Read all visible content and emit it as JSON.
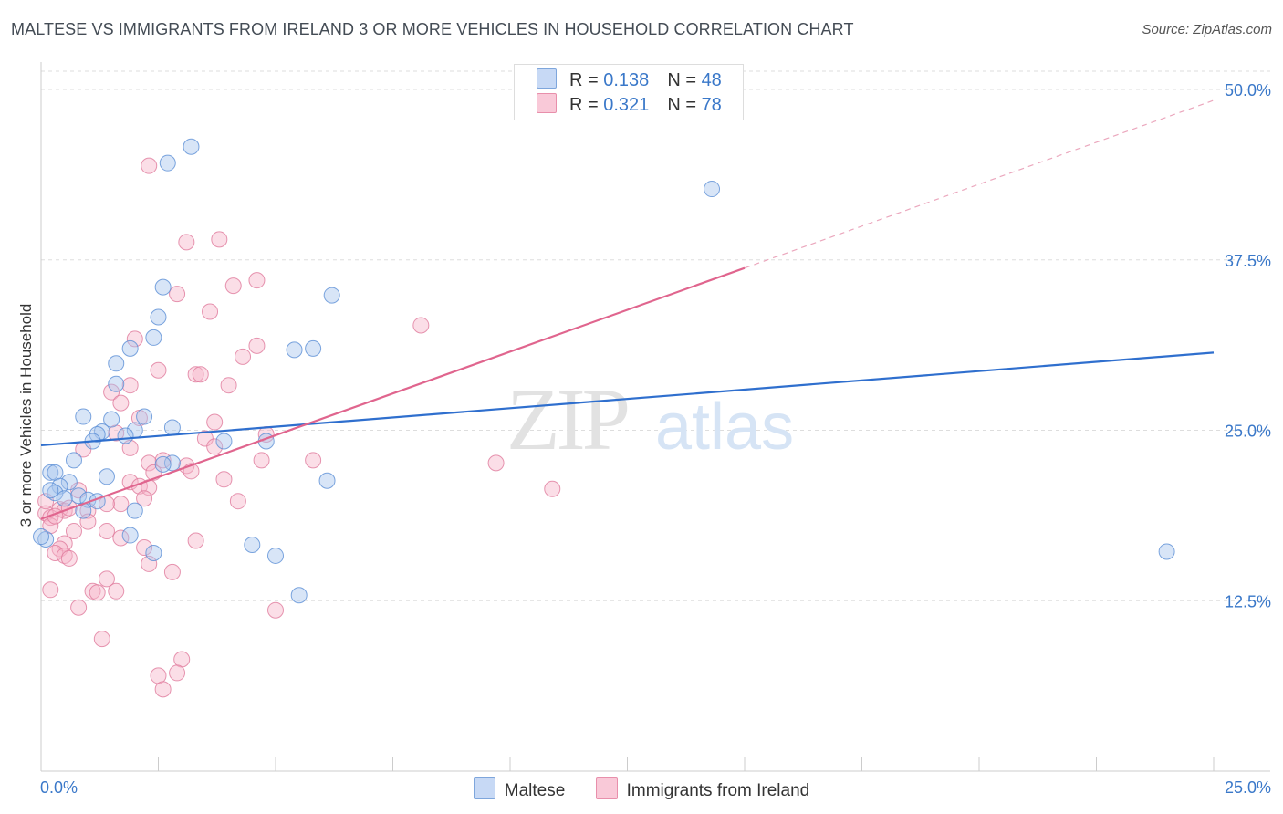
{
  "header": {
    "title": "MALTESE VS IMMIGRANTS FROM IRELAND 3 OR MORE VEHICLES IN HOUSEHOLD CORRELATION CHART",
    "source": "Source: ZipAtlas.com"
  },
  "legend": {
    "rows": [
      {
        "r_label": "R = ",
        "r_value": "0.138",
        "n_label": "N = ",
        "n_value": "48"
      },
      {
        "r_label": "R = ",
        "r_value": "0.321",
        "n_label": "N = ",
        "n_value": "78"
      }
    ]
  },
  "bottom_legend": {
    "series1": "Maltese",
    "series2": "Immigrants from Ireland"
  },
  "colors": {
    "blue_fill": "#a9c6ee",
    "blue_stroke": "#5b8fd6",
    "blue_line": "#2f6fce",
    "pink_fill": "#f6b5c9",
    "pink_stroke": "#e07a9c",
    "pink_line": "#e0658e",
    "axis_label": "#3a78c9"
  },
  "chart_data": {
    "type": "scatter",
    "title": "MALTESE VS IMMIGRANTS FROM IRELAND 3 OR MORE VEHICLES IN HOUSEHOLD CORRELATION CHART",
    "xlabel": "",
    "ylabel": "3 or more Vehicles in Household",
    "xlim": [
      0,
      25
    ],
    "ylim": [
      0,
      50
    ],
    "x_tick_labels": [
      "0.0%",
      "25.0%"
    ],
    "y_ticks": [
      12.5,
      25.0,
      37.5,
      50.0
    ],
    "y_tick_labels": [
      "12.5%",
      "25.0%",
      "37.5%",
      "50.0%"
    ],
    "watermark": {
      "zip": "ZIP",
      "atlas": "atlas"
    },
    "series": [
      {
        "name": "Maltese",
        "r": 0.138,
        "n": 48,
        "trend": {
          "x0": 0,
          "y0": 23.9,
          "x1": 25,
          "y1": 30.7,
          "dash_from": null
        },
        "points": [
          [
            3.2,
            45.8
          ],
          [
            2.7,
            44.6
          ],
          [
            14.3,
            42.7
          ],
          [
            2.6,
            35.5
          ],
          [
            6.2,
            34.9
          ],
          [
            2.5,
            33.3
          ],
          [
            2.4,
            31.8
          ],
          [
            1.9,
            31.0
          ],
          [
            5.8,
            31.0
          ],
          [
            5.4,
            30.9
          ],
          [
            1.6,
            29.9
          ],
          [
            1.6,
            28.4
          ],
          [
            0.9,
            26.0
          ],
          [
            2.2,
            26.0
          ],
          [
            1.5,
            25.8
          ],
          [
            2.8,
            25.2
          ],
          [
            2.0,
            25.0
          ],
          [
            1.3,
            24.9
          ],
          [
            1.2,
            24.7
          ],
          [
            1.8,
            24.6
          ],
          [
            1.1,
            24.2
          ],
          [
            3.9,
            24.2
          ],
          [
            4.8,
            24.2
          ],
          [
            2.8,
            22.6
          ],
          [
            0.7,
            22.8
          ],
          [
            2.6,
            22.5
          ],
          [
            0.2,
            21.9
          ],
          [
            0.3,
            21.9
          ],
          [
            1.4,
            21.6
          ],
          [
            6.1,
            21.3
          ],
          [
            0.6,
            21.2
          ],
          [
            0.4,
            20.9
          ],
          [
            0.3,
            20.4
          ],
          [
            0.2,
            20.6
          ],
          [
            0.8,
            20.2
          ],
          [
            0.5,
            20.0
          ],
          [
            1.0,
            19.9
          ],
          [
            1.2,
            19.8
          ],
          [
            0.9,
            19.1
          ],
          [
            2.0,
            19.1
          ],
          [
            1.9,
            17.3
          ],
          [
            0.1,
            17.0
          ],
          [
            4.5,
            16.6
          ],
          [
            5.0,
            15.8
          ],
          [
            24.0,
            16.1
          ],
          [
            2.4,
            16.0
          ],
          [
            5.5,
            12.9
          ],
          [
            0.0,
            17.2
          ]
        ]
      },
      {
        "name": "Immigrants from Ireland",
        "r": 0.321,
        "n": 78,
        "trend": {
          "x0": 0,
          "y0": 18.5,
          "x1": 15.0,
          "y1": 36.9,
          "dash_to_x": 25,
          "dash_to_y": 49.2
        },
        "points": [
          [
            2.3,
            44.4
          ],
          [
            3.8,
            39.0
          ],
          [
            3.1,
            38.8
          ],
          [
            4.6,
            36.0
          ],
          [
            4.1,
            35.6
          ],
          [
            2.9,
            35.0
          ],
          [
            3.6,
            33.7
          ],
          [
            8.1,
            32.7
          ],
          [
            2.0,
            31.7
          ],
          [
            4.6,
            31.2
          ],
          [
            4.3,
            30.4
          ],
          [
            2.5,
            29.4
          ],
          [
            3.3,
            29.1
          ],
          [
            3.4,
            29.1
          ],
          [
            1.9,
            28.3
          ],
          [
            4.0,
            28.3
          ],
          [
            1.5,
            27.8
          ],
          [
            1.7,
            27.0
          ],
          [
            2.1,
            25.9
          ],
          [
            3.7,
            25.6
          ],
          [
            1.6,
            24.8
          ],
          [
            4.8,
            24.7
          ],
          [
            3.5,
            24.4
          ],
          [
            0.9,
            23.6
          ],
          [
            1.9,
            23.7
          ],
          [
            3.7,
            23.8
          ],
          [
            2.6,
            22.8
          ],
          [
            4.7,
            22.8
          ],
          [
            5.8,
            22.8
          ],
          [
            9.7,
            22.6
          ],
          [
            2.3,
            22.6
          ],
          [
            3.1,
            22.4
          ],
          [
            3.2,
            22.0
          ],
          [
            2.4,
            21.9
          ],
          [
            3.9,
            21.4
          ],
          [
            1.9,
            21.2
          ],
          [
            2.1,
            20.9
          ],
          [
            10.9,
            20.7
          ],
          [
            2.3,
            20.8
          ],
          [
            0.8,
            20.6
          ],
          [
            2.2,
            20.0
          ],
          [
            1.7,
            19.6
          ],
          [
            4.2,
            19.8
          ],
          [
            1.4,
            19.6
          ],
          [
            0.4,
            19.2
          ],
          [
            0.5,
            19.1
          ],
          [
            1.0,
            19.1
          ],
          [
            0.1,
            18.9
          ],
          [
            0.2,
            18.6
          ],
          [
            1.0,
            18.3
          ],
          [
            0.2,
            18.0
          ],
          [
            0.7,
            17.6
          ],
          [
            1.4,
            17.6
          ],
          [
            1.7,
            17.1
          ],
          [
            3.3,
            16.9
          ],
          [
            0.5,
            16.7
          ],
          [
            2.2,
            16.4
          ],
          [
            0.4,
            16.3
          ],
          [
            0.3,
            16.0
          ],
          [
            0.5,
            15.8
          ],
          [
            0.6,
            15.6
          ],
          [
            2.3,
            15.2
          ],
          [
            2.8,
            14.6
          ],
          [
            1.4,
            14.1
          ],
          [
            1.1,
            13.2
          ],
          [
            1.6,
            13.2
          ],
          [
            1.2,
            13.1
          ],
          [
            0.2,
            13.3
          ],
          [
            0.8,
            12.0
          ],
          [
            5.0,
            11.8
          ],
          [
            1.3,
            9.7
          ],
          [
            3.0,
            8.2
          ],
          [
            2.9,
            7.2
          ],
          [
            2.5,
            7.0
          ],
          [
            2.6,
            6.0
          ],
          [
            0.1,
            19.8
          ],
          [
            0.3,
            18.7
          ],
          [
            0.6,
            19.3
          ]
        ]
      }
    ]
  }
}
